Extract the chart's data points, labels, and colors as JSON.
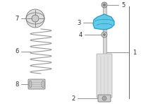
{
  "bg_color": "#ffffff",
  "line_color": "#666666",
  "highlight_color": "#5bc8e8",
  "highlight_outline": "#2299bb",
  "part_color": "#cccccc",
  "part_color2": "#aaaaaa",
  "label_color": "#333333",
  "figsize": [
    2.0,
    1.47
  ],
  "dpi": 100,
  "spring_color": "#999999",
  "shock_body_color": "#dddddd",
  "shock_outline": "#999999",
  "rod_color": "#cccccc"
}
